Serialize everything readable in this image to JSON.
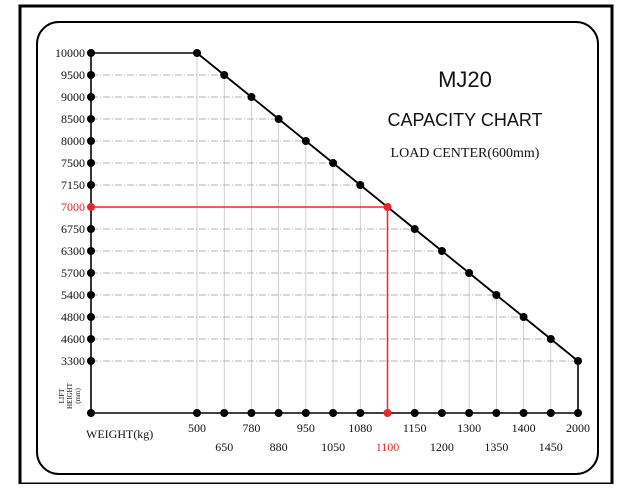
{
  "chart_data": {
    "type": "line",
    "title": "MJ20",
    "subtitle": "CAPACITY CHART",
    "annotation": "LOAD CENTER(600mm)",
    "xlabel": "WEIGHT(kg)",
    "ylabel": "LIFT HEIGHT (mm)",
    "ylabel_lines": [
      "LIFT",
      "HEIGHT",
      "(mm)"
    ],
    "y_ticks": [
      "10000",
      "9500",
      "9000",
      "8500",
      "8000",
      "7500",
      "7150",
      "7000",
      "6750",
      "6300",
      "5700",
      "5400",
      "4800",
      "4600",
      "3300"
    ],
    "x_ticks": [
      "500",
      "650",
      "780",
      "880",
      "950",
      "1050",
      "1080",
      "1100",
      "1150",
      "1200",
      "1300",
      "1350",
      "1400",
      "1450",
      "2000"
    ],
    "series": [
      {
        "x": [
          500,
          650,
          780,
          880,
          950,
          1050,
          1080,
          1100,
          1150,
          1200,
          1300,
          1350,
          1400,
          1450,
          2000
        ],
        "y": [
          10000,
          9500,
          9000,
          8500,
          8000,
          7500,
          7150,
          7000,
          6750,
          6300,
          5700,
          5400,
          4800,
          4600,
          3300
        ]
      }
    ],
    "highlight": {
      "x": 1100,
      "y": 7000,
      "color": "#e8262a"
    },
    "colors": {
      "line": "#000000",
      "grid": "#9a9a9a",
      "border": "#000000"
    }
  }
}
